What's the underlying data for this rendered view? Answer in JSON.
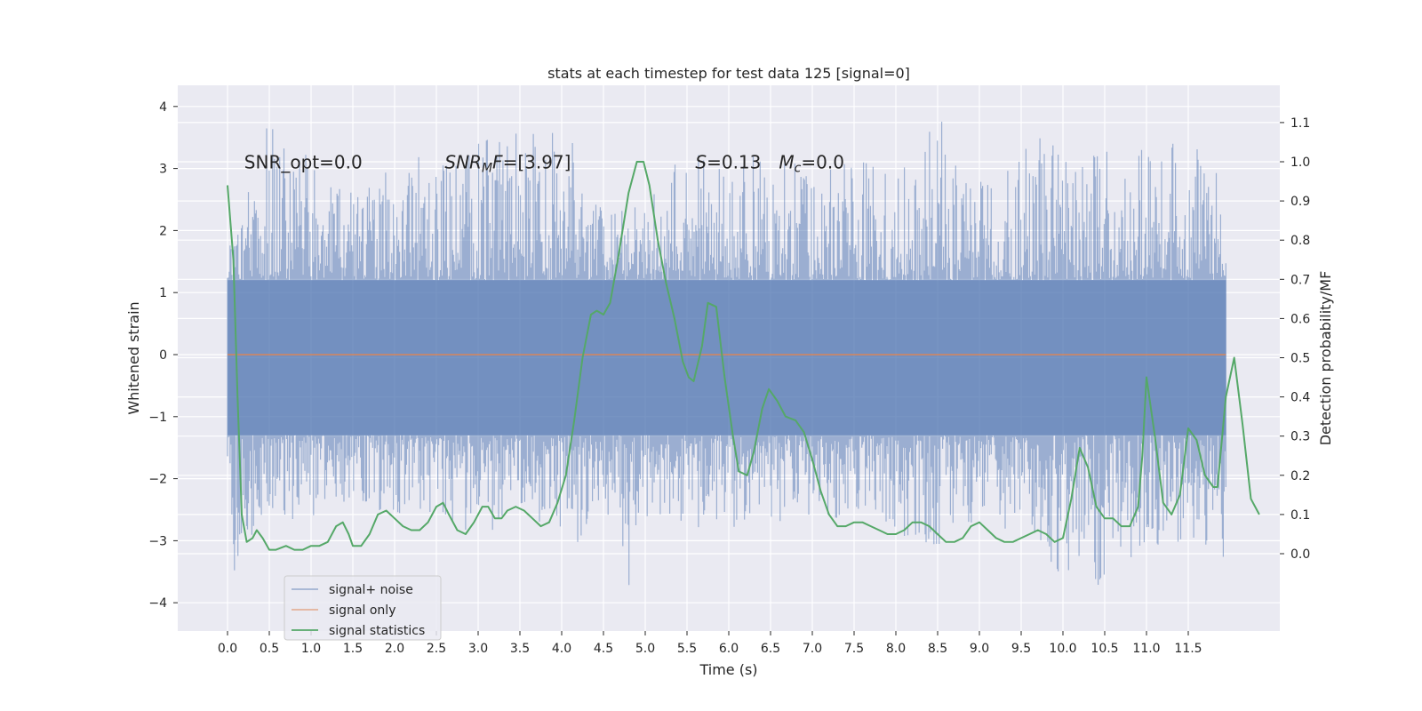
{
  "chart_data": {
    "type": "line",
    "title": "stats at each timestep for test data 125 [signal=0]",
    "xlabel": "Time (s)",
    "ylabel_left": "Whitened strain",
    "ylabel_right": "Detection probability/MF",
    "x_range": [
      0,
      12
    ],
    "xlim": [
      -0.6,
      12.6
    ],
    "ylim_left": [
      -4.4,
      4.3
    ],
    "ylim_right": [
      -0.2,
      1.2
    ],
    "x_ticks": [
      "0.0",
      "0.5",
      "1.0",
      "1.5",
      "2.0",
      "2.5",
      "3.0",
      "3.5",
      "4.0",
      "4.5",
      "5.0",
      "5.5",
      "6.0",
      "6.5",
      "7.0",
      "7.5",
      "8.0",
      "8.5",
      "9.0",
      "9.5",
      "10.0",
      "10.5",
      "11.0",
      "11.5"
    ],
    "y_ticks_left": [
      "−4",
      "−3",
      "−2",
      "−1",
      "0",
      "1",
      "2",
      "3",
      "4"
    ],
    "y_ticks_right": [
      "0.0",
      "0.1",
      "0.2",
      "0.3",
      "0.4",
      "0.5",
      "0.6",
      "0.7",
      "0.8",
      "0.9",
      "1.0",
      "1.1"
    ],
    "grid": true,
    "legend_position": "lower-left",
    "annotations": [
      {
        "label": "SNR_opt=0.0",
        "x": 0.2,
        "y": 3.1
      },
      {
        "label_main": "SNR",
        "label_sub": "M",
        "label_rest": "F=[3.97]",
        "x": 2.6,
        "y": 3.1
      },
      {
        "label_main": "S",
        "label_rest": "=0.13",
        "x": 5.6,
        "y": 3.1
      },
      {
        "label_main": "M",
        "label_sub": "c",
        "label_rest": "=0.0",
        "x": 6.6,
        "y": 3.1
      }
    ],
    "series": [
      {
        "name": "signal+ noise",
        "color": "#4c72b0",
        "axis": "left",
        "envelope_upper": [
          [
            0.0,
            1.7
          ],
          [
            0.5,
            3.8
          ],
          [
            1.5,
            2.6
          ],
          [
            2.0,
            3.3
          ],
          [
            2.5,
            3.1
          ],
          [
            3.5,
            3.7
          ],
          [
            4.0,
            3.6
          ],
          [
            4.2,
            3.5
          ],
          [
            4.5,
            2.3
          ],
          [
            5.0,
            2.5
          ],
          [
            5.5,
            3.3
          ],
          [
            6.0,
            3.0
          ],
          [
            6.5,
            3.4
          ],
          [
            7.0,
            2.9
          ],
          [
            7.5,
            3.3
          ],
          [
            8.0,
            2.8
          ],
          [
            8.5,
            3.9
          ],
          [
            9.0,
            2.8
          ],
          [
            9.5,
            3.3
          ],
          [
            9.7,
            3.9
          ],
          [
            10.0,
            3.1
          ],
          [
            10.5,
            3.3
          ],
          [
            11.0,
            3.3
          ],
          [
            11.5,
            3.5
          ],
          [
            11.95,
            2.9
          ]
        ],
        "envelope_lower": [
          [
            0.0,
            -1.9
          ],
          [
            0.05,
            -3.6
          ],
          [
            0.5,
            -2.5
          ],
          [
            1.0,
            -2.8
          ],
          [
            1.5,
            -2.3
          ],
          [
            2.0,
            -2.7
          ],
          [
            2.5,
            -2.7
          ],
          [
            3.0,
            -2.9
          ],
          [
            3.5,
            -2.7
          ],
          [
            4.0,
            -2.9
          ],
          [
            4.2,
            -3.1
          ],
          [
            4.5,
            -2.3
          ],
          [
            4.8,
            -4.0
          ],
          [
            5.0,
            -2.6
          ],
          [
            5.5,
            -2.8
          ],
          [
            6.0,
            -2.8
          ],
          [
            6.5,
            -2.7
          ],
          [
            7.0,
            -2.8
          ],
          [
            7.5,
            -2.6
          ],
          [
            8.0,
            -2.9
          ],
          [
            8.5,
            -3.1
          ],
          [
            9.0,
            -2.7
          ],
          [
            9.5,
            -2.9
          ],
          [
            9.95,
            -3.7
          ],
          [
            10.3,
            -3.4
          ],
          [
            10.4,
            -3.8
          ],
          [
            11.0,
            -3.1
          ],
          [
            11.5,
            -3.0
          ],
          [
            11.95,
            -3.4
          ]
        ]
      },
      {
        "name": "signal only",
        "color": "#dd8452",
        "axis": "left",
        "points": [
          [
            0.0,
            0.0
          ],
          [
            11.95,
            0.0
          ]
        ]
      },
      {
        "name": "signal statistics",
        "color": "#55a868",
        "axis": "right",
        "points": [
          [
            0.0,
            0.94
          ],
          [
            0.07,
            0.75
          ],
          [
            0.12,
            0.4
          ],
          [
            0.17,
            0.1
          ],
          [
            0.23,
            0.03
          ],
          [
            0.3,
            0.04
          ],
          [
            0.35,
            0.06
          ],
          [
            0.42,
            0.04
          ],
          [
            0.5,
            0.01
          ],
          [
            0.58,
            0.01
          ],
          [
            0.7,
            0.02
          ],
          [
            0.8,
            0.01
          ],
          [
            0.9,
            0.01
          ],
          [
            1.0,
            0.02
          ],
          [
            1.1,
            0.02
          ],
          [
            1.2,
            0.03
          ],
          [
            1.3,
            0.07
          ],
          [
            1.38,
            0.08
          ],
          [
            1.45,
            0.05
          ],
          [
            1.5,
            0.02
          ],
          [
            1.6,
            0.02
          ],
          [
            1.7,
            0.05
          ],
          [
            1.8,
            0.1
          ],
          [
            1.9,
            0.11
          ],
          [
            2.0,
            0.09
          ],
          [
            2.1,
            0.07
          ],
          [
            2.2,
            0.06
          ],
          [
            2.3,
            0.06
          ],
          [
            2.4,
            0.08
          ],
          [
            2.5,
            0.12
          ],
          [
            2.58,
            0.13
          ],
          [
            2.65,
            0.1
          ],
          [
            2.75,
            0.06
          ],
          [
            2.85,
            0.05
          ],
          [
            2.95,
            0.08
          ],
          [
            3.05,
            0.12
          ],
          [
            3.12,
            0.12
          ],
          [
            3.2,
            0.09
          ],
          [
            3.28,
            0.09
          ],
          [
            3.35,
            0.11
          ],
          [
            3.45,
            0.12
          ],
          [
            3.55,
            0.11
          ],
          [
            3.65,
            0.09
          ],
          [
            3.75,
            0.07
          ],
          [
            3.85,
            0.08
          ],
          [
            3.95,
            0.13
          ],
          [
            4.05,
            0.2
          ],
          [
            4.15,
            0.34
          ],
          [
            4.25,
            0.5
          ],
          [
            4.35,
            0.61
          ],
          [
            4.42,
            0.62
          ],
          [
            4.5,
            0.61
          ],
          [
            4.58,
            0.64
          ],
          [
            4.68,
            0.76
          ],
          [
            4.8,
            0.92
          ],
          [
            4.9,
            1.0
          ],
          [
            4.98,
            1.0
          ],
          [
            5.05,
            0.94
          ],
          [
            5.15,
            0.8
          ],
          [
            5.25,
            0.69
          ],
          [
            5.35,
            0.6
          ],
          [
            5.45,
            0.49
          ],
          [
            5.52,
            0.45
          ],
          [
            5.58,
            0.44
          ],
          [
            5.68,
            0.53
          ],
          [
            5.75,
            0.64
          ],
          [
            5.85,
            0.63
          ],
          [
            5.95,
            0.45
          ],
          [
            6.05,
            0.3
          ],
          [
            6.12,
            0.21
          ],
          [
            6.22,
            0.2
          ],
          [
            6.3,
            0.26
          ],
          [
            6.4,
            0.37
          ],
          [
            6.48,
            0.42
          ],
          [
            6.58,
            0.39
          ],
          [
            6.68,
            0.35
          ],
          [
            6.8,
            0.34
          ],
          [
            6.9,
            0.31
          ],
          [
            7.0,
            0.24
          ],
          [
            7.1,
            0.16
          ],
          [
            7.2,
            0.1
          ],
          [
            7.3,
            0.07
          ],
          [
            7.4,
            0.07
          ],
          [
            7.5,
            0.08
          ],
          [
            7.6,
            0.08
          ],
          [
            7.7,
            0.07
          ],
          [
            7.8,
            0.06
          ],
          [
            7.9,
            0.05
          ],
          [
            8.0,
            0.05
          ],
          [
            8.1,
            0.06
          ],
          [
            8.2,
            0.08
          ],
          [
            8.3,
            0.08
          ],
          [
            8.4,
            0.07
          ],
          [
            8.5,
            0.05
          ],
          [
            8.6,
            0.03
          ],
          [
            8.7,
            0.03
          ],
          [
            8.8,
            0.04
          ],
          [
            8.9,
            0.07
          ],
          [
            9.0,
            0.08
          ],
          [
            9.1,
            0.06
          ],
          [
            9.2,
            0.04
          ],
          [
            9.3,
            0.03
          ],
          [
            9.4,
            0.03
          ],
          [
            9.5,
            0.04
          ],
          [
            9.6,
            0.05
          ],
          [
            9.7,
            0.06
          ],
          [
            9.8,
            0.05
          ],
          [
            9.9,
            0.03
          ],
          [
            10.0,
            0.04
          ],
          [
            10.1,
            0.14
          ],
          [
            10.2,
            0.27
          ],
          [
            10.3,
            0.22
          ],
          [
            10.4,
            0.12
          ],
          [
            10.5,
            0.09
          ],
          [
            10.6,
            0.09
          ],
          [
            10.7,
            0.07
          ],
          [
            10.8,
            0.07
          ],
          [
            10.9,
            0.12
          ],
          [
            10.95,
            0.25
          ],
          [
            11.0,
            0.45
          ],
          [
            11.1,
            0.3
          ],
          [
            11.2,
            0.13
          ],
          [
            11.3,
            0.1
          ],
          [
            11.4,
            0.15
          ],
          [
            11.5,
            0.32
          ],
          [
            11.6,
            0.29
          ],
          [
            11.7,
            0.2
          ],
          [
            11.8,
            0.17
          ],
          [
            11.85,
            0.17
          ],
          [
            11.95,
            0.4
          ],
          [
            12.05,
            0.5
          ],
          [
            12.15,
            0.33
          ],
          [
            12.25,
            0.14
          ],
          [
            12.35,
            0.1
          ]
        ]
      }
    ]
  }
}
